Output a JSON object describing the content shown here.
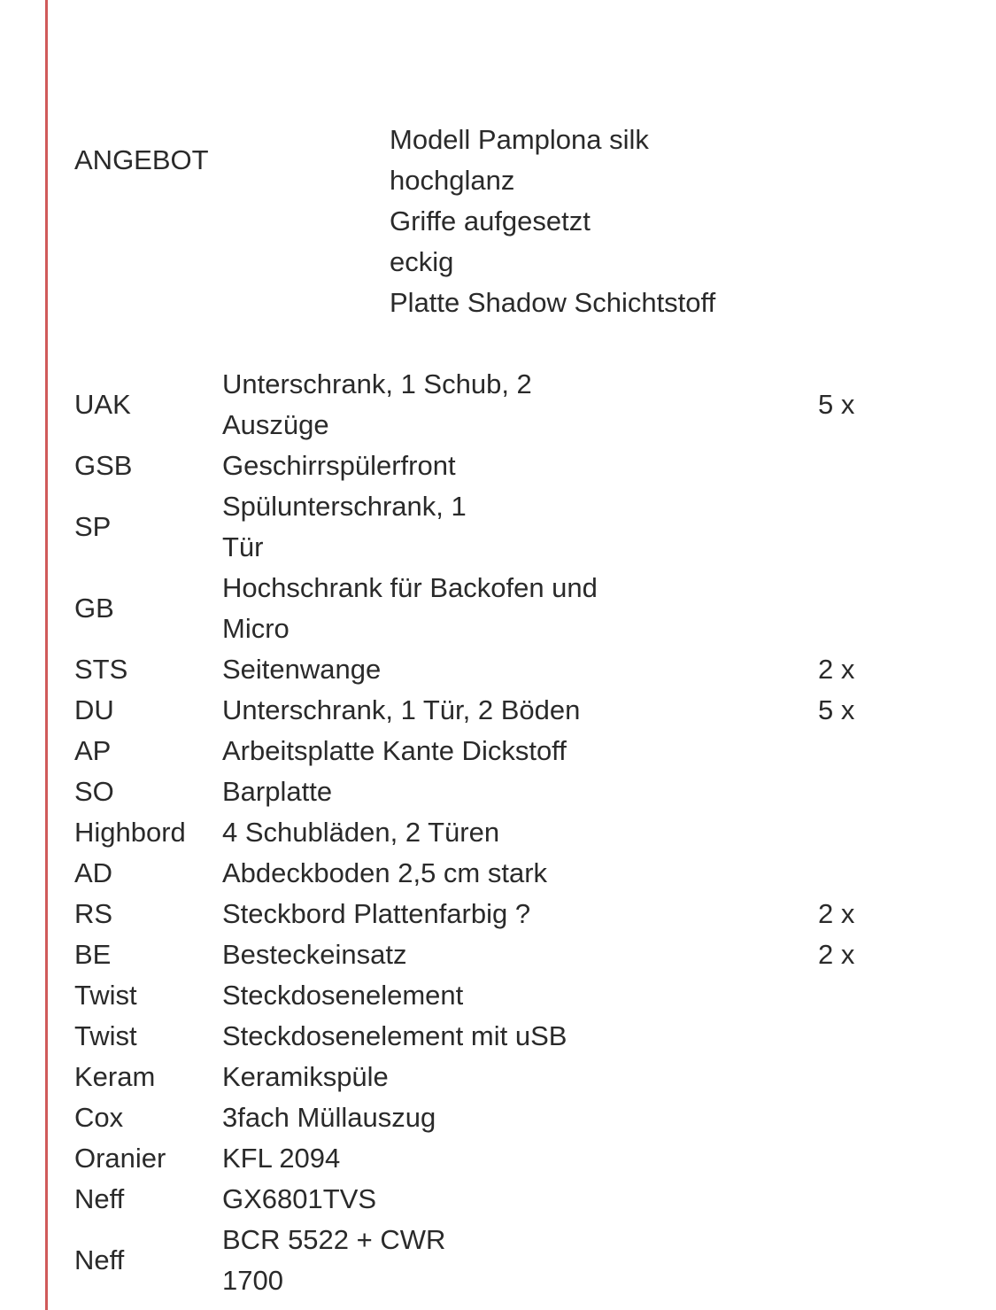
{
  "colors": {
    "margin_line": "#d05a5a",
    "text": "#2a2a2a"
  },
  "header": {
    "title": "ANGEBOT",
    "description": [
      "Modell Pamplona silk",
      "hochglanz",
      "Griffe aufgesetzt",
      "eckig",
      "Platte Shadow Schichtstoff"
    ]
  },
  "items": [
    {
      "code": "UAK",
      "description": [
        "Unterschrank, 1 Schub, 2",
        "Auszüge"
      ],
      "qty": "5 x"
    },
    {
      "code": "GSB",
      "description": [
        "Geschirrspülerfront"
      ],
      "qty": ""
    },
    {
      "code": "SP",
      "description": [
        "Spülunterschrank, 1",
        "Tür"
      ],
      "qty": ""
    },
    {
      "code": "GB",
      "description": [
        "Hochschrank für Backofen und",
        "Micro"
      ],
      "qty": ""
    },
    {
      "code": "STS",
      "description": [
        "Seitenwange"
      ],
      "qty": "2 x"
    },
    {
      "code": "DU",
      "description": [
        "Unterschrank, 1 Tür, 2 Böden"
      ],
      "qty": "5 x"
    },
    {
      "code": "AP",
      "description": [
        "Arbeitsplatte Kante Dickstoff"
      ],
      "qty": ""
    },
    {
      "code": "SO",
      "description": [
        "Barplatte"
      ],
      "qty": ""
    },
    {
      "code": "Highbord",
      "description": [
        "4 Schubläden, 2 Türen"
      ],
      "qty": ""
    },
    {
      "code": "AD",
      "description": [
        "Abdeckboden 2,5 cm stark"
      ],
      "qty": ""
    },
    {
      "code": "RS",
      "description": [
        "Steckbord Plattenfarbig ?"
      ],
      "qty": "2 x"
    },
    {
      "code": "BE",
      "description": [
        "Besteckeinsatz"
      ],
      "qty": "2 x"
    },
    {
      "code": "Twist",
      "description": [
        "Steckdosenelement"
      ],
      "qty": ""
    },
    {
      "code": "Twist",
      "description": [
        "Steckdosenelement mit uSB"
      ],
      "qty": ""
    },
    {
      "code": "Keram",
      "description": [
        "Keramikspüle"
      ],
      "qty": ""
    },
    {
      "code": "Cox",
      "description": [
        "3fach Müllauszug"
      ],
      "qty": ""
    },
    {
      "code": "Oranier",
      "description": [
        "KFL 2094"
      ],
      "qty": ""
    },
    {
      "code": "Neff",
      "description": [
        "GX6801TVS"
      ],
      "qty": ""
    },
    {
      "code": "Neff",
      "description": [
        "BCR 5522 + CWR",
        "1700"
      ],
      "qty": ""
    }
  ]
}
